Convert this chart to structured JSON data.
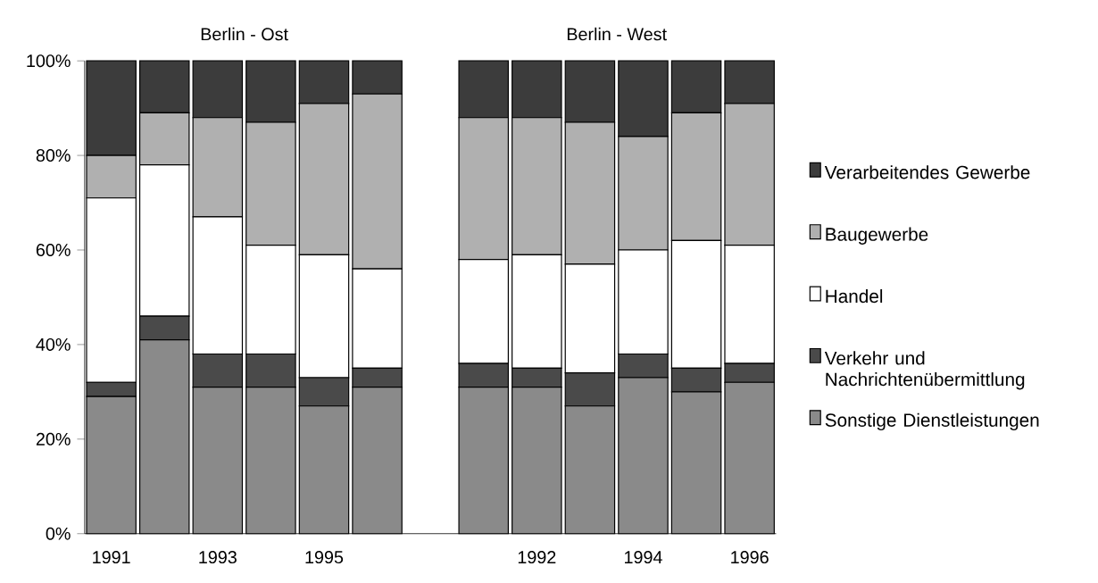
{
  "chart_data": {
    "type": "bar",
    "stacked": true,
    "categories": [
      "1991",
      null,
      "1993",
      null,
      "1995",
      null,
      null,
      null,
      "1992",
      null,
      "1994",
      null,
      "1996"
    ],
    "series": [
      {
        "name": "Sonstige Dienstleistungen",
        "color": "#8a8a8a",
        "values": [
          29,
          41,
          31,
          31,
          27,
          31,
          null,
          31,
          31,
          27,
          33,
          30,
          32
        ]
      },
      {
        "name": "Verkehr und Nachrichtenübermittlung",
        "color": "#4a4a4a",
        "values": [
          3,
          5,
          7,
          7,
          6,
          4,
          null,
          5,
          4,
          7,
          5,
          5,
          4
        ]
      },
      {
        "name": "Handel",
        "color": "#ffffff",
        "values": [
          39,
          32,
          29,
          23,
          26,
          21,
          null,
          22,
          24,
          23,
          22,
          27,
          25
        ]
      },
      {
        "name": "Baugewerbe",
        "color": "#b0b0b0",
        "values": [
          9,
          11,
          21,
          26,
          32,
          37,
          null,
          30,
          29,
          30,
          24,
          27,
          30
        ]
      },
      {
        "name": "Verarbeitendes Gewerbe",
        "color": "#3c3c3c",
        "values": [
          20,
          11,
          12,
          13,
          9,
          7,
          null,
          12,
          12,
          13,
          16,
          11,
          9
        ]
      }
    ],
    "annotations": [
      "Berlin - Ost",
      "Berlin - West"
    ],
    "ylim": [
      0,
      100
    ],
    "yticks": [
      {
        "value": 0,
        "label": "0%"
      },
      {
        "value": 20,
        "label": "20%"
      },
      {
        "value": 40,
        "label": "40%"
      },
      {
        "value": 60,
        "label": "60%"
      },
      {
        "value": 80,
        "label": "80%"
      },
      {
        "value": 100,
        "label": "100%"
      }
    ],
    "legend": "right"
  }
}
